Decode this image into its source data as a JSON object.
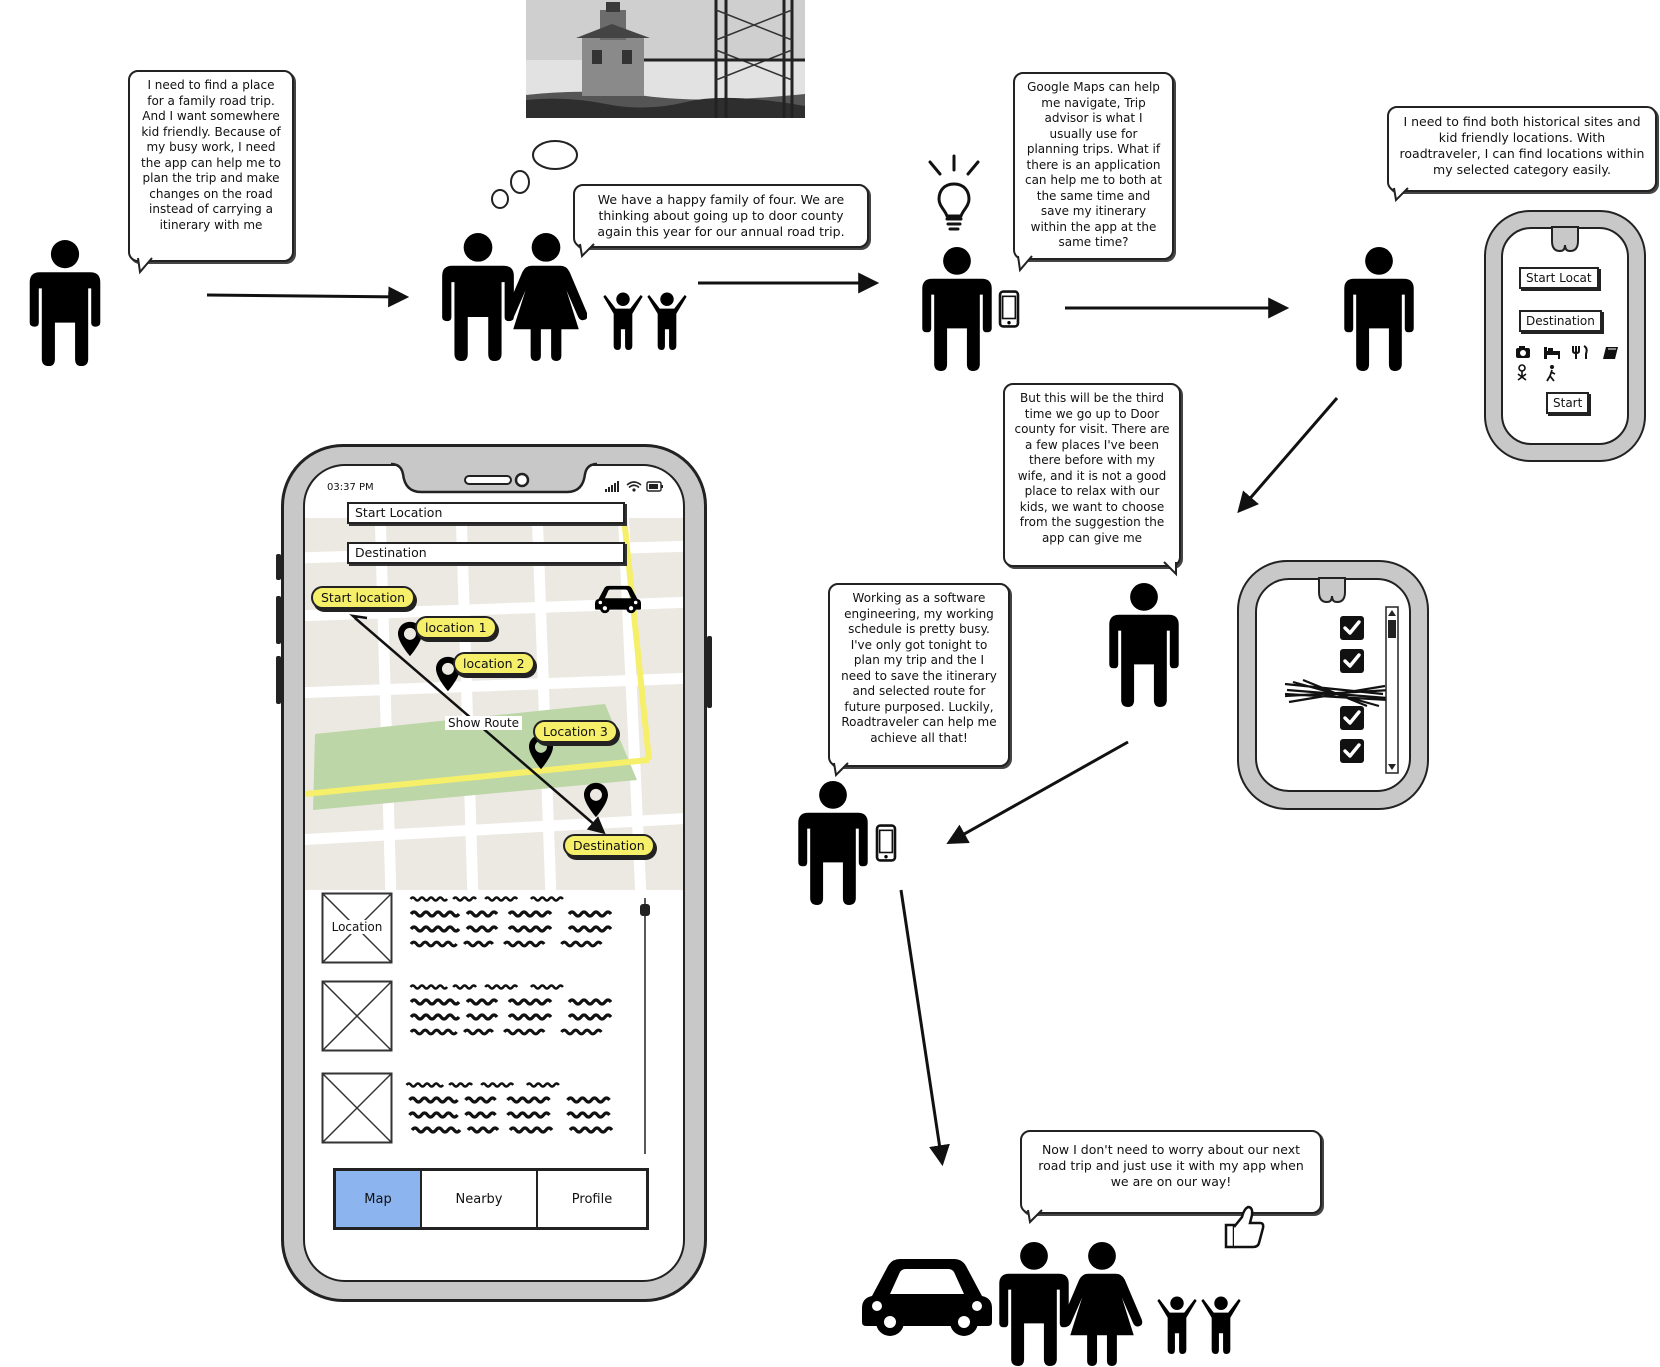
{
  "bubbles": {
    "b1": "I need to find a place for a family road trip. And I want somewhere kid friendly. Because of my busy work, I need the app can help me to plan the trip and make changes on the road instead of carrying a itinerary with me",
    "b2": "We have a happy family of four. We are thinking about going up to door county again this year for our annual road trip.",
    "b3": "Google Maps can help me navigate, Trip advisor is what I usually use for planning trips. What if there is an application can help me to both at the same time and save my itinerary within the app at the same time?",
    "b4": "I need to find both historical sites and kid friendly locations. With roadtraveler, I can find locations within my selected category easily.",
    "b5": "But this will be the third time we go up to Door county for visit. There are a few places I've been there before with my wife, and it is not a good place to relax with our kids, we want to choose from the suggestion the app can give me",
    "b6": "Working as a software engineering, my working schedule is pretty busy. I've only got tonight to plan my trip and the I need to save the itinerary and selected route for future purposed. Luckily, Roadtraveler can help me achieve all that!",
    "b7": "Now I don't need to worry about our next road trip and just use it with my app when we are on our way!"
  },
  "phone": {
    "time": "03:37 PM",
    "start_field": "Start Location",
    "dest_field": "Destination",
    "tags": {
      "start": "Start location",
      "loc1": "location 1",
      "loc2": "location 2",
      "loc3": "Location 3",
      "dest": "Destination"
    },
    "show_route": "Show Route",
    "list_image_label": "Location",
    "tabs": [
      "Map",
      "Nearby",
      "Profile"
    ],
    "active_tab_color": "#8cb4ee"
  },
  "watch1": {
    "start_btn": "Start Locat",
    "dest_btn": "Destination",
    "go_btn": "Start"
  },
  "colors": {
    "highlight": "#f5ef6a",
    "map_bg": "#ece9e2",
    "park": "#bcd6a8",
    "device_gray": "#c8c8c8"
  }
}
